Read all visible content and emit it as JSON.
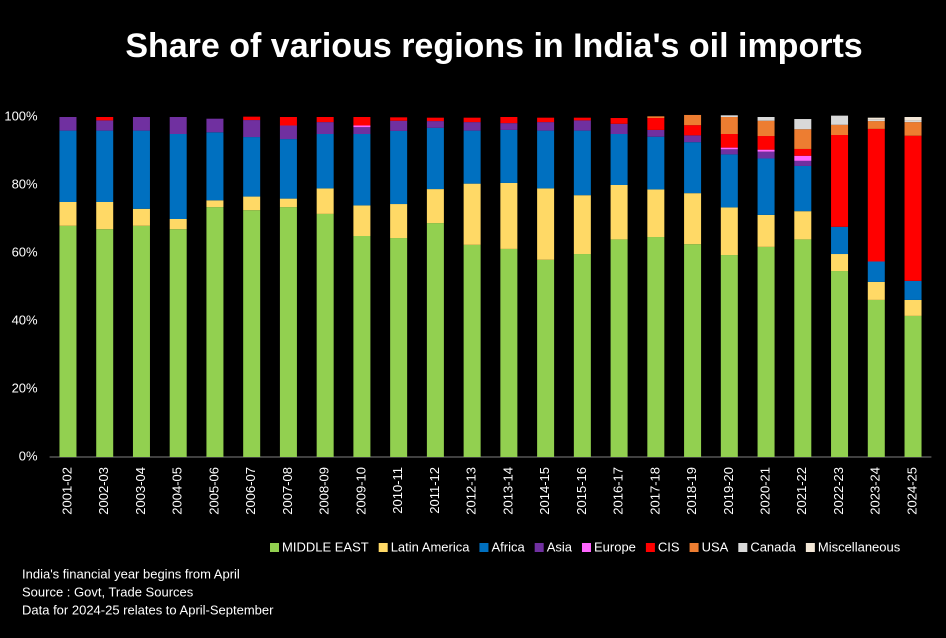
{
  "chart_data": {
    "type": "stacked_bar",
    "title": "Share of various regions in India's oil imports",
    "categories": [
      "2001-02",
      "2002-03",
      "2003-04",
      "2004-05",
      "2005-06",
      "2006-07",
      "2007-08",
      "2008-09",
      "2009-10",
      "2010-11",
      "2011-12",
      "2012-13",
      "2013-14",
      "2014-15",
      "2015-16",
      "2016-17",
      "2017-18",
      "2018-19",
      "2019-20",
      "2020-21",
      "2021-22",
      "2022-23",
      "2023-24",
      "2024-25"
    ],
    "series": [
      {
        "name": "MIDDLE EAST",
        "color": "#92d050",
        "values": [
          68,
          67,
          68,
          67,
          73.5,
          72.6,
          73.5,
          71.5,
          65,
          64.4,
          68.8,
          62.4,
          61.2,
          58,
          59.7,
          64,
          64.7,
          62.6,
          59.4,
          61.8,
          64,
          54.7,
          46.2,
          41.5
        ]
      },
      {
        "name": "Latin America",
        "color": "#ffd966",
        "values": [
          7,
          8,
          5,
          3,
          2,
          4,
          2.5,
          7.5,
          9,
          10,
          10,
          18,
          19.4,
          21,
          17.3,
          16,
          14,
          15,
          14,
          9.4,
          8.3,
          5,
          5.3,
          4.7
        ]
      },
      {
        "name": "Africa",
        "color": "#0070c0",
        "values": [
          21,
          21,
          23,
          25,
          20,
          17.5,
          17.5,
          16,
          21,
          21.5,
          18,
          15.6,
          15.6,
          17,
          19,
          15,
          15.5,
          15,
          15.6,
          16.6,
          13.3,
          8,
          6,
          5.6
        ]
      },
      {
        "name": "Asia",
        "color": "#7030a0",
        "values": [
          4,
          3,
          4,
          5,
          4,
          5,
          4,
          3.5,
          2,
          3,
          2,
          2.5,
          2,
          2.5,
          3,
          3,
          2,
          2,
          1.5,
          2,
          1.5,
          0,
          0,
          0
        ]
      },
      {
        "name": "Europe",
        "color": "#ff66ff",
        "values": [
          0,
          0,
          0,
          0,
          0,
          0,
          0,
          0,
          0.5,
          0,
          0,
          0,
          0,
          0,
          0,
          0,
          0,
          0,
          0.5,
          0.6,
          1.5,
          0,
          0,
          0
        ]
      },
      {
        "name": "CIS",
        "color": "#ff0000",
        "values": [
          0,
          1,
          0,
          0,
          0,
          1,
          2.5,
          1.5,
          2.5,
          1,
          1,
          1.3,
          1.8,
          1.3,
          0.8,
          1.7,
          3.5,
          3,
          4,
          4,
          2,
          27,
          39,
          42.7
        ]
      },
      {
        "name": "USA",
        "color": "#ed7d31",
        "values": [
          0,
          0,
          0,
          0,
          0,
          0,
          0,
          0,
          0,
          0,
          0,
          0,
          0,
          0,
          0,
          0,
          0.5,
          3,
          5,
          4.5,
          5.8,
          3,
          2.3,
          4
        ]
      },
      {
        "name": "Canada",
        "color": "#d9d9d9",
        "values": [
          0,
          0,
          0,
          0,
          0,
          0,
          0,
          0,
          0,
          0,
          0,
          0,
          0,
          0,
          0,
          0,
          0,
          0,
          0.5,
          1.1,
          3,
          2.7,
          0.5,
          0.5
        ]
      },
      {
        "name": "Miscellaneous",
        "color": "#f2e6d6",
        "values": [
          0,
          0,
          0,
          0,
          0,
          0,
          0,
          0,
          0,
          0,
          0,
          0,
          0,
          0,
          0,
          0,
          0,
          0,
          0,
          0,
          0,
          0,
          0.5,
          1
        ]
      }
    ],
    "ylim": [
      0,
      100
    ],
    "yticks": [
      {
        "value": 0,
        "label": "0%"
      },
      {
        "value": 20,
        "label": "20%"
      },
      {
        "value": 40,
        "label": "40%"
      },
      {
        "value": 60,
        "label": "60%"
      },
      {
        "value": 80,
        "label": "80%"
      },
      {
        "value": 100,
        "label": "100%"
      }
    ],
    "notes": [
      "India's financial year begins from April",
      "Source : Govt, Trade Sources",
      "Data for 2024-25 relates to April-September"
    ]
  }
}
